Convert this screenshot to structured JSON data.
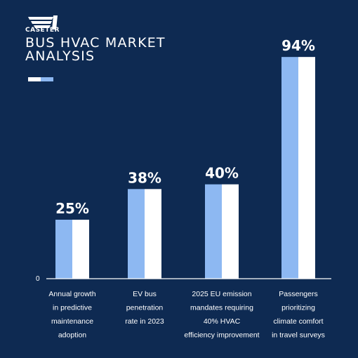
{
  "brand": {
    "name": "CASETER"
  },
  "colors": {
    "background": "#0e2a52",
    "bar_light": "#8db8f2",
    "bar_white": "#ffffff",
    "axis": "#ffffff"
  },
  "chart_data": {
    "type": "bar",
    "title": "BUS HVAC MARKET ANALYSIS",
    "categories": [
      [
        "Annual growth",
        "in predictive",
        "maintenance",
        "adoption"
      ],
      [
        "EV bus",
        "penetration",
        "rate in 2023"
      ],
      [
        "2025 EU emission",
        "mandates requiring",
        "40% HVAC",
        "efficiency improvement"
      ],
      [
        "Passengers",
        "prioritizing",
        "climate comfort",
        "in travel surveys"
      ]
    ],
    "values": [
      25,
      38,
      40,
      94
    ],
    "value_labels": [
      "25%",
      "38%",
      "40%",
      "94%"
    ],
    "ylim": [
      0,
      100
    ],
    "y_ticks": [
      "0"
    ],
    "grid": false,
    "legend": "none"
  }
}
